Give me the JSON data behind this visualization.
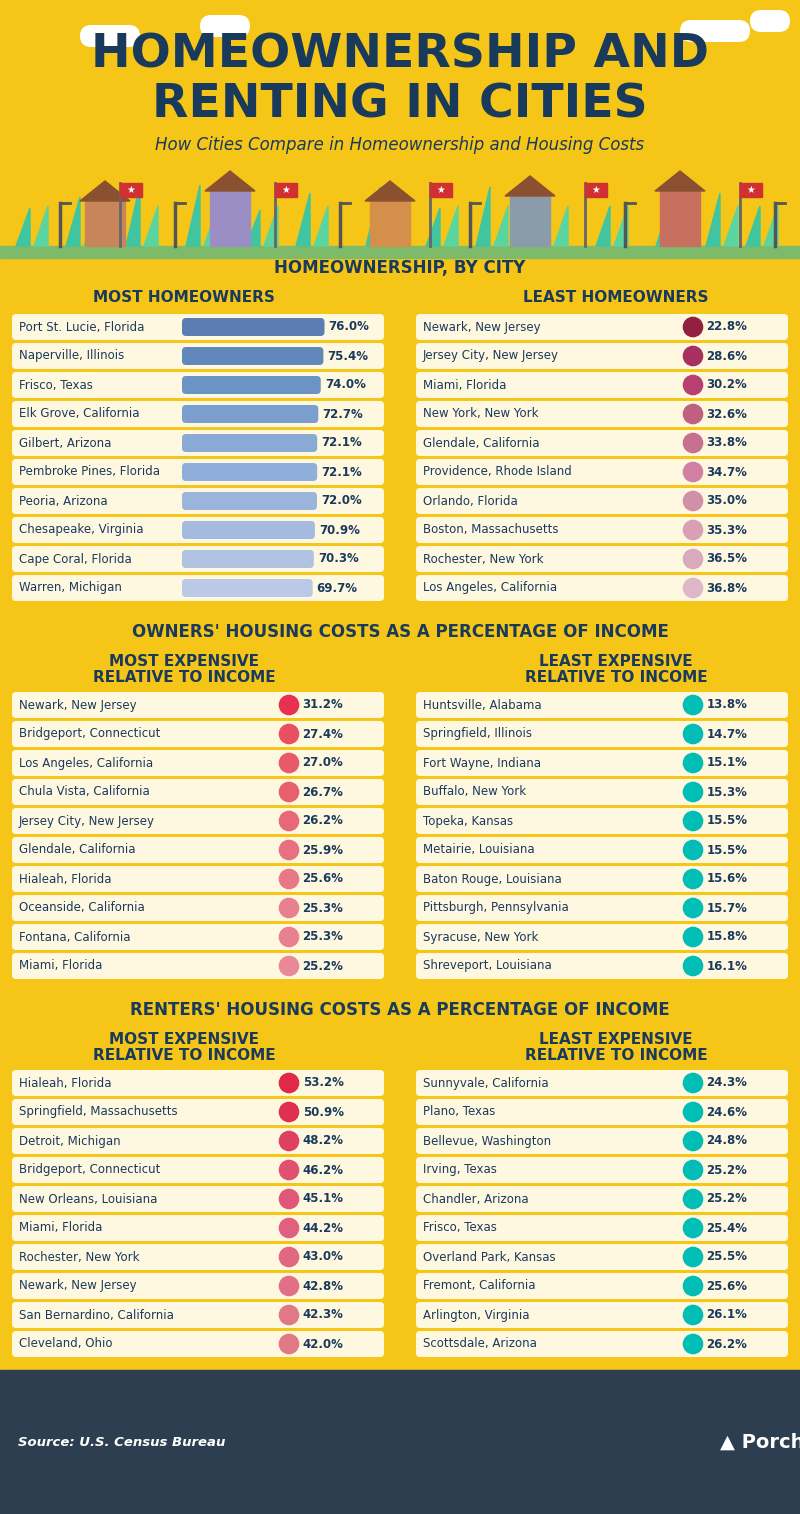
{
  "bg_color": "#F5C518",
  "title_line1": "HOMEOWNERSHIP AND",
  "title_line2": "RENTING IN CITIES",
  "subtitle": "How Cities Compare in Homeownership and Housing Costs",
  "section1_title": "HOMEOWNERSHIP, BY CITY",
  "section1_left_header": "MOST HOMEOWNERS",
  "section1_right_header": "LEAST HOMEOWNERS",
  "section1_left": [
    [
      "Port St. Lucie, Florida",
      76.0
    ],
    [
      "Naperville, Illinois",
      75.4
    ],
    [
      "Frisco, Texas",
      74.0
    ],
    [
      "Elk Grove, California",
      72.7
    ],
    [
      "Gilbert, Arizona",
      72.1
    ],
    [
      "Pembroke Pines, Florida",
      72.1
    ],
    [
      "Peoria, Arizona",
      72.0
    ],
    [
      "Chesapeake, Virginia",
      70.9
    ],
    [
      "Cape Coral, Florida",
      70.3
    ],
    [
      "Warren, Michigan",
      69.7
    ]
  ],
  "section1_right": [
    [
      "Newark, New Jersey",
      22.8
    ],
    [
      "Jersey City, New Jersey",
      28.6
    ],
    [
      "Miami, Florida",
      30.2
    ],
    [
      "New York, New York",
      32.6
    ],
    [
      "Glendale, California",
      33.8
    ],
    [
      "Providence, Rhode Island",
      34.7
    ],
    [
      "Orlando, Florida",
      35.0
    ],
    [
      "Boston, Massachusetts",
      35.3
    ],
    [
      "Rochester, New York",
      36.5
    ],
    [
      "Los Angeles, California",
      36.8
    ]
  ],
  "section2_title": "OWNERS' HOUSING COSTS AS A PERCENTAGE OF INCOME",
  "section2_left": [
    [
      "Newark, New Jersey",
      31.2
    ],
    [
      "Bridgeport, Connecticut",
      27.4
    ],
    [
      "Los Angeles, California",
      27.0
    ],
    [
      "Chula Vista, California",
      26.7
    ],
    [
      "Jersey City, New Jersey",
      26.2
    ],
    [
      "Glendale, California",
      25.9
    ],
    [
      "Hialeah, Florida",
      25.6
    ],
    [
      "Oceanside, California",
      25.3
    ],
    [
      "Fontana, California",
      25.3
    ],
    [
      "Miami, Florida",
      25.2
    ]
  ],
  "section2_right": [
    [
      "Huntsville, Alabama",
      13.8
    ],
    [
      "Springfield, Illinois",
      14.7
    ],
    [
      "Fort Wayne, Indiana",
      15.1
    ],
    [
      "Buffalo, New York",
      15.3
    ],
    [
      "Topeka, Kansas",
      15.5
    ],
    [
      "Metairie, Louisiana",
      15.5
    ],
    [
      "Baton Rouge, Louisiana",
      15.6
    ],
    [
      "Pittsburgh, Pennsylvania",
      15.7
    ],
    [
      "Syracuse, New York",
      15.8
    ],
    [
      "Shreveport, Louisiana",
      16.1
    ]
  ],
  "section3_title": "RENTERS' HOUSING COSTS AS A PERCENTAGE OF INCOME",
  "section3_left": [
    [
      "Hialeah, Florida",
      53.2
    ],
    [
      "Springfield, Massachusetts",
      50.9
    ],
    [
      "Detroit, Michigan",
      48.2
    ],
    [
      "Bridgeport, Connecticut",
      46.2
    ],
    [
      "New Orleans, Louisiana",
      45.1
    ],
    [
      "Miami, Florida",
      44.2
    ],
    [
      "Rochester, New York",
      43.0
    ],
    [
      "Newark, New Jersey",
      42.8
    ],
    [
      "San Bernardino, California",
      42.3
    ],
    [
      "Cleveland, Ohio",
      42.0
    ]
  ],
  "section3_right": [
    [
      "Sunnyvale, California",
      24.3
    ],
    [
      "Plano, Texas",
      24.6
    ],
    [
      "Bellevue, Washington",
      24.8
    ],
    [
      "Irving, Texas",
      25.2
    ],
    [
      "Chandler, Arizona",
      25.2
    ],
    [
      "Frisco, Texas",
      25.4
    ],
    [
      "Overland Park, Kansas",
      25.5
    ],
    [
      "Fremont, California",
      25.6
    ],
    [
      "Arlington, Virginia",
      26.1
    ],
    [
      "Scottsdale, Arizona",
      26.2
    ]
  ],
  "source_text": "Source: U.S. Census Bureau",
  "colors": {
    "row_bg": "#FFF8E1",
    "header_color": "#1A3A5C",
    "title_color": "#1A3A5C",
    "amber_bg": "#F5C518",
    "footer_bg": "#2C3E50",
    "blue_bars": [
      "#5B7DB1",
      "#6088BB",
      "#6B93C5",
      "#7A9ECE",
      "#8AAAD6",
      "#90AEDA",
      "#9AB4DC",
      "#A4BADF",
      "#B0C2E2",
      "#BAC9E5"
    ],
    "pink_dots": [
      "#922040",
      "#A83060",
      "#B84070",
      "#C06080",
      "#C87090",
      "#D080A0",
      "#D090A8",
      "#D8A0B4",
      "#D8AABC",
      "#DEB8C8"
    ],
    "red_dots_owners": [
      "#E83050",
      "#E85060",
      "#E85A68",
      "#E86070",
      "#E86878",
      "#E87080",
      "#E87888",
      "#E88090",
      "#E88090",
      "#E88898"
    ],
    "teal_dot": "#00BDB5",
    "red_dots_renters": [
      "#E02848",
      "#E03050",
      "#E04060",
      "#E05070",
      "#E05878",
      "#E06080",
      "#E06880",
      "#E07088",
      "#E07888",
      "#E07888"
    ]
  }
}
